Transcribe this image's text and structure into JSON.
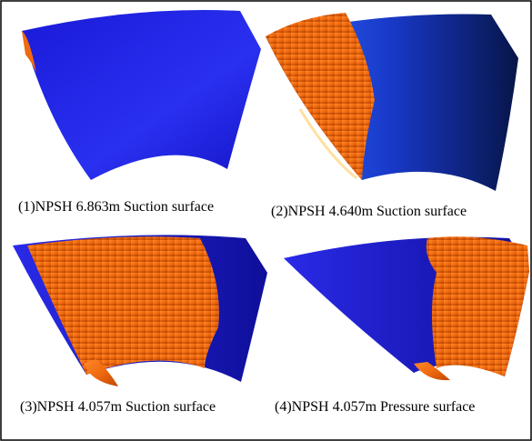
{
  "panels": [
    {
      "caption": "(1)NPSH 6.863m Suction surface"
    },
    {
      "caption": "(2)NPSH 4.640m Suction surface"
    },
    {
      "caption": "(3)NPSH 4.057m Suction surface"
    },
    {
      "caption": "(4)NPSH 4.057m Pressure surface"
    }
  ]
}
